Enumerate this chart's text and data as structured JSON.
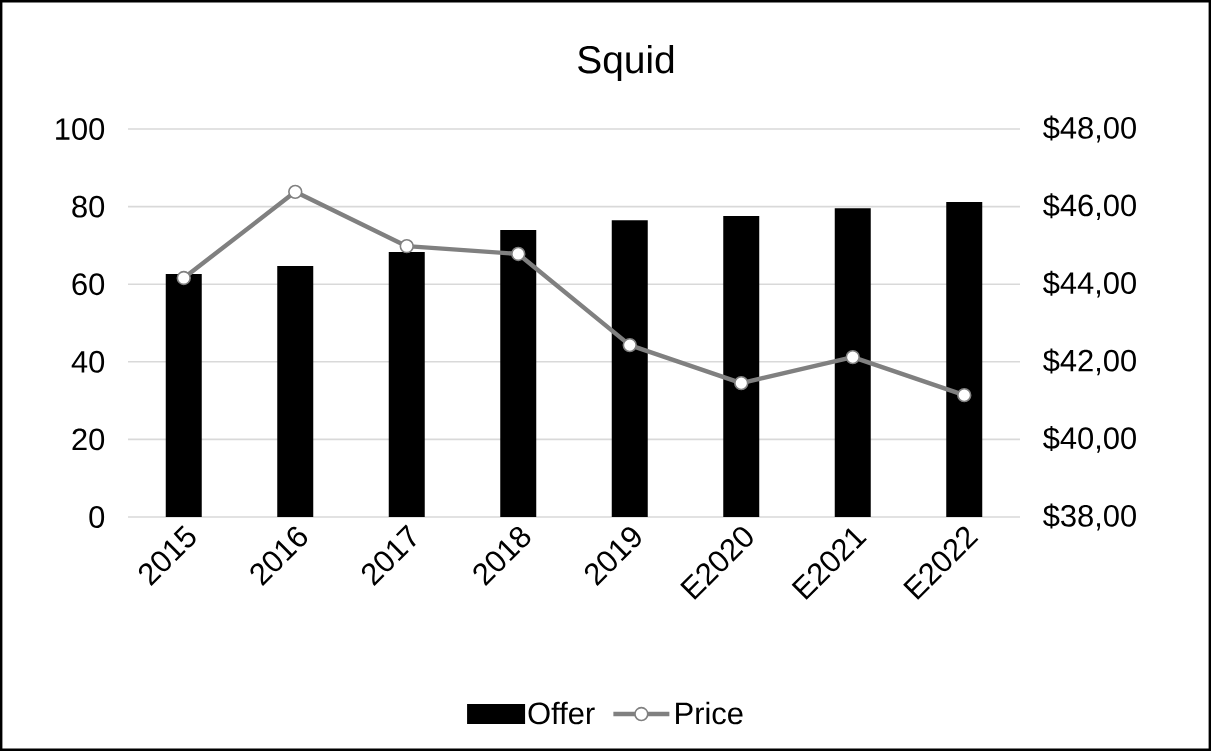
{
  "chart_data": {
    "type": "bar",
    "title": "Squid",
    "categories": [
      "2015",
      "2016",
      "2017",
      "2018",
      "2019",
      "E2020",
      "E2021",
      "E2022"
    ],
    "series": [
      {
        "name": "Offer",
        "color": "#000000",
        "values": [
          62.6,
          64.7,
          68.3,
          74.0,
          76.5,
          77.6,
          79.6,
          81.2
        ]
      },
      {
        "name": "Price",
        "type": "line",
        "axis": "y2",
        "color": "#808080",
        "marker": "circle",
        "values": [
          44.16,
          46.38,
          44.98,
          44.78,
          42.43,
          41.45,
          42.12,
          41.14
        ]
      }
    ],
    "ylim": [
      0,
      100
    ],
    "yticks": [
      0,
      20,
      40,
      60,
      80,
      100
    ],
    "y2lim": [
      38,
      48
    ],
    "y2ticks": [
      {
        "value": 38,
        "label": "$38,00"
      },
      {
        "value": 40,
        "label": "$40,00"
      },
      {
        "value": 42,
        "label": "$42,00"
      },
      {
        "value": 44,
        "label": "$44,00"
      },
      {
        "value": 46,
        "label": "$46,00"
      },
      {
        "value": 48,
        "label": "$48,00"
      }
    ],
    "grid": "y",
    "legend": "bottom"
  }
}
